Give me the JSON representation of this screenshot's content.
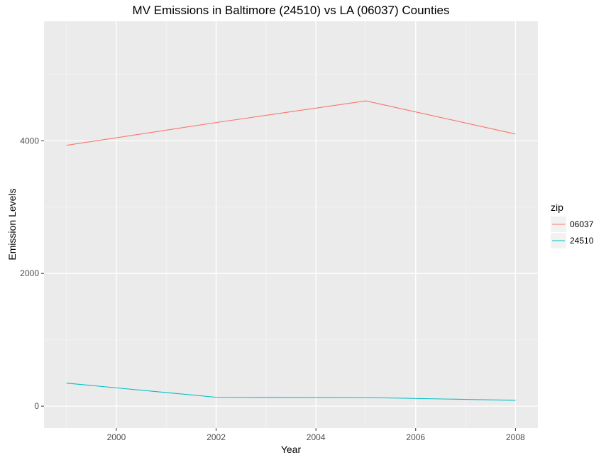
{
  "chart_data": {
    "type": "line",
    "title": "MV Emissions in Baltimore (24510) vs LA (06037) Counties",
    "xlabel": "Year",
    "ylabel": "Emission Levels",
    "x": [
      1999,
      2002,
      2005,
      2008
    ],
    "xlim": [
      1998.55,
      2008.45
    ],
    "ylim": [
      -330,
      5800
    ],
    "x_ticks": [
      2000,
      2002,
      2004,
      2006,
      2008
    ],
    "x_tick_labels": [
      "2000",
      "2002",
      "2004",
      "2006",
      "2008"
    ],
    "y_ticks": [
      0,
      2000,
      4000
    ],
    "y_tick_labels": [
      "0",
      "2000",
      "4000"
    ],
    "grid": true,
    "legend_title": "zip",
    "legend_position": "right",
    "series": [
      {
        "name": "06037",
        "color": "#F8766D",
        "values": [
          3931,
          4274,
          4601,
          4101
        ]
      },
      {
        "name": "24510",
        "color": "#00BFC4",
        "values": [
          347,
          134,
          130,
          88
        ]
      }
    ]
  }
}
